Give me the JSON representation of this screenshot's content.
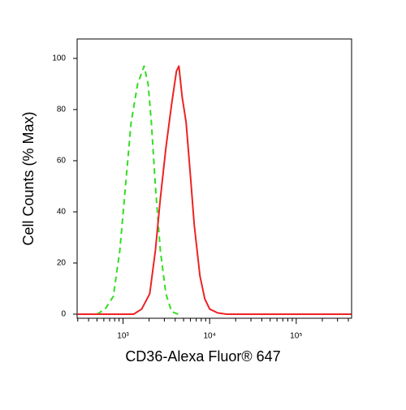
{
  "chart_data": {
    "type": "line",
    "x_label": "CD36-Alexa Fluor® 647",
    "y_label": "Cell Counts (% Max)",
    "xscale": "log",
    "xlim": [
      295,
      436000
    ],
    "ylim": [
      -1.6,
      107.6
    ],
    "xticks": [
      {
        "value": 1000,
        "label": "10³"
      },
      {
        "value": 10000,
        "label": "10⁴"
      },
      {
        "value": 100000,
        "label": "10⁵"
      }
    ],
    "xminorticks": [
      300,
      400,
      500,
      600,
      700,
      800,
      900,
      2000,
      3000,
      4000,
      5000,
      6000,
      7000,
      8000,
      9000,
      20000,
      30000,
      40000,
      50000,
      60000,
      70000,
      80000,
      90000,
      200000,
      300000,
      400000
    ],
    "yticks": [
      0,
      20,
      40,
      60,
      80,
      100
    ],
    "series": [
      {
        "color": "#33dd22",
        "dash": true,
        "x": [
          502,
          622,
          773,
          918,
          1067,
          1240,
          1473,
          1750,
          1949,
          2125,
          2366,
          2692,
          3128,
          3637,
          4325
        ],
        "values": [
          0,
          2,
          7,
          25,
          50,
          75,
          90,
          97,
          90,
          75,
          50,
          25,
          8,
          1,
          0
        ]
      },
      {
        "color": "#ee2222",
        "dash": false,
        "x": [
          300,
          1322,
          1641,
          2033,
          2366,
          2692,
          3128,
          3637,
          4140,
          4416,
          4813,
          5354,
          5966,
          6640,
          7725,
          8790,
          10000,
          12390,
          15710,
          430000
        ],
        "values": [
          0,
          0,
          2,
          8,
          25,
          45,
          65,
          82,
          95,
          97,
          85,
          75,
          55,
          35,
          15,
          6,
          2,
          0.5,
          0,
          0
        ]
      }
    ]
  }
}
